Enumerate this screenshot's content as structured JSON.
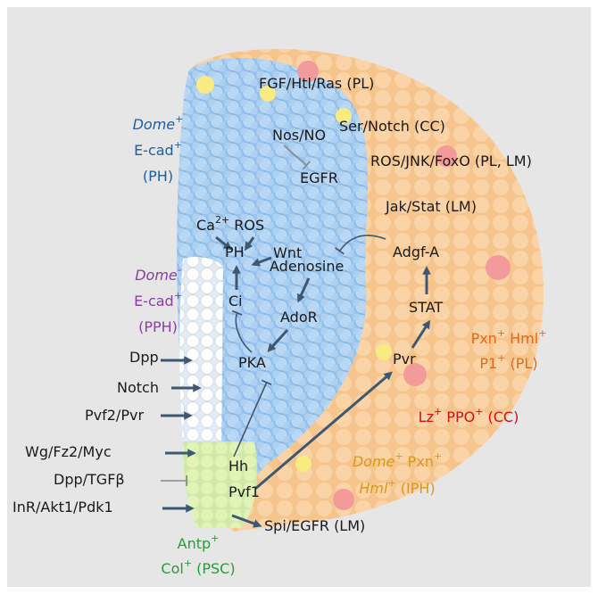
{
  "labels": [
    {
      "color": "#1a1a1a",
      "lines": [
        [
          {
            "text": "FGF/Htl/Ras (PL)"
          }
        ]
      ]
    },
    {
      "color": "#1a1a1a",
      "lines": [
        [
          {
            "text": "Ser/Notch (CC)"
          }
        ]
      ]
    },
    {
      "color": "#1a1a1a",
      "lines": [
        [
          {
            "text": "ROS/JNK/FoxO (PL, LM)"
          }
        ]
      ]
    },
    {
      "color": "#1a1a1a",
      "lines": [
        [
          {
            "text": "Jak/Stat (LM)"
          }
        ]
      ]
    },
    {
      "color": "#1a1a1a",
      "lines": [
        [
          {
            "text": "Nos/NO"
          }
        ]
      ]
    },
    {
      "color": "#1a1a1a",
      "lines": [
        [
          {
            "text": "EGFR"
          }
        ]
      ]
    },
    {
      "color": "#1a1a1a",
      "lines": [
        [
          {
            "text": "Ca"
          },
          {
            "text": "2+",
            "style": "sup"
          },
          {
            "text": " ROS"
          }
        ]
      ]
    },
    {
      "color": "#1a1a1a",
      "lines": [
        [
          {
            "text": "Wnt"
          }
        ]
      ]
    },
    {
      "color": "#1a1a1a",
      "lines": [
        [
          {
            "text": "PH"
          }
        ]
      ]
    },
    {
      "color": "#1a1a1a",
      "lines": [
        [
          {
            "text": "Adenosine"
          }
        ]
      ]
    },
    {
      "color": "#1a1a1a",
      "lines": [
        [
          {
            "text": "Adgf-A"
          }
        ]
      ]
    },
    {
      "color": "#1a1a1a",
      "lines": [
        [
          {
            "text": "Ci"
          }
        ]
      ]
    },
    {
      "color": "#1a1a1a",
      "lines": [
        [
          {
            "text": "AdoR"
          }
        ]
      ]
    },
    {
      "color": "#1a1a1a",
      "lines": [
        [
          {
            "text": "STAT"
          }
        ]
      ]
    },
    {
      "color": "#1a1a1a",
      "lines": [
        [
          {
            "text": "PKA"
          }
        ]
      ]
    },
    {
      "color": "#1a1a1a",
      "lines": [
        [
          {
            "text": "Pvr"
          }
        ]
      ]
    },
    {
      "color": "#1a1a1a",
      "lines": [
        [
          {
            "text": "Dpp"
          }
        ]
      ]
    },
    {
      "color": "#1a1a1a",
      "lines": [
        [
          {
            "text": "Notch"
          }
        ]
      ]
    },
    {
      "color": "#1a1a1a",
      "lines": [
        [
          {
            "text": "Pvf2/Pvr"
          }
        ]
      ]
    },
    {
      "color": "#1a1a1a",
      "lines": [
        [
          {
            "text": "Wg/Fz2/Myc"
          }
        ]
      ]
    },
    {
      "color": "#1a1a1a",
      "lines": [
        [
          {
            "text": "Dpp/TGFβ"
          }
        ]
      ]
    },
    {
      "color": "#1a1a1a",
      "lines": [
        [
          {
            "text": "InR/Akt1/Pdk1"
          }
        ]
      ]
    },
    {
      "color": "#1a1a1a",
      "lines": [
        [
          {
            "text": "Hh"
          }
        ]
      ]
    },
    {
      "color": "#1a1a1a",
      "lines": [
        [
          {
            "text": "Pvf1"
          }
        ]
      ]
    },
    {
      "color": "#1a1a1a",
      "lines": [
        [
          {
            "text": "Spi/EGFR (LM)"
          }
        ]
      ]
    },
    {
      "color": "#1f5fa0",
      "lines": [
        [
          {
            "text": "Dome",
            "style": "italic"
          },
          {
            "text": "+",
            "style": "sup"
          }
        ],
        [
          {
            "text": "E-cad"
          },
          {
            "text": "+",
            "style": "sup"
          }
        ],
        [
          {
            "text": "(PH)"
          }
        ]
      ]
    },
    {
      "color": "#8a3fa0",
      "lines": [
        [
          {
            "text": "Dome",
            "style": "italic"
          },
          {
            "text": "-",
            "style": "sup"
          }
        ],
        [
          {
            "text": "E-cad"
          },
          {
            "text": "+",
            "style": "sup"
          }
        ],
        [
          {
            "text": "(PPH)"
          }
        ]
      ]
    },
    {
      "color": "#e06a1a",
      "lines": [
        [
          {
            "text": "Pxn"
          },
          {
            "text": "+",
            "style": "sup"
          },
          {
            "text": " Hml"
          },
          {
            "text": "+",
            "style": "sup"
          }
        ],
        [
          {
            "text": "P1"
          },
          {
            "text": "+",
            "style": "sup"
          },
          {
            "text": " (PL)"
          }
        ]
      ]
    },
    {
      "color": "#d0101a",
      "lines": [
        [
          {
            "text": "Lz"
          },
          {
            "text": "+",
            "style": "sup"
          },
          {
            "text": " PPO"
          },
          {
            "text": "+",
            "style": "sup"
          },
          {
            "text": " (CC)"
          }
        ]
      ]
    },
    {
      "color": "#d89a1a",
      "lines": [
        [
          {
            "text": "Dome",
            "style": "italic"
          },
          {
            "text": "+",
            "style": "sup"
          },
          {
            "text": " Pxn"
          },
          {
            "text": "+",
            "style": "sup"
          }
        ],
        [
          {
            "text": "Hml",
            "style": "italic"
          },
          {
            "text": "+",
            "style": "sup"
          },
          {
            "text": " (IPH)"
          }
        ]
      ]
    },
    {
      "color": "#2a9a3a",
      "lines": [
        [
          {
            "text": "Antp"
          },
          {
            "text": "+",
            "style": "sup"
          }
        ],
        [
          {
            "text": "Col"
          },
          {
            "text": "+",
            "style": "sup"
          },
          {
            "text": " (PSC)"
          }
        ]
      ]
    }
  ]
}
